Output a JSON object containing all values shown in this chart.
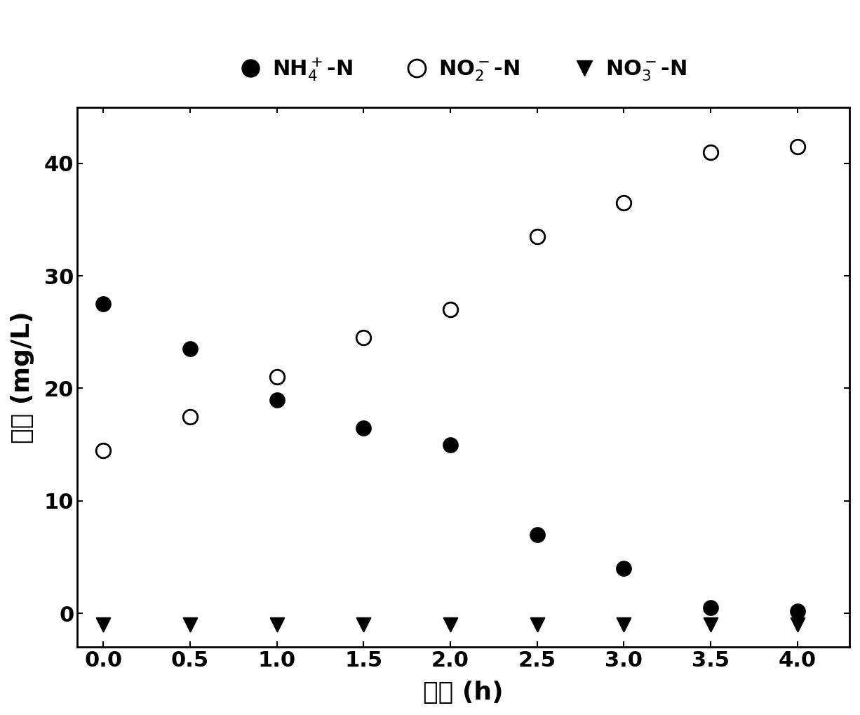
{
  "time": [
    0.0,
    0.5,
    1.0,
    1.5,
    2.0,
    2.5,
    3.0,
    3.5,
    4.0
  ],
  "NH4_N": [
    27.5,
    23.5,
    19.0,
    16.5,
    15.0,
    7.0,
    4.0,
    0.5,
    0.2
  ],
  "NO2_N": [
    14.5,
    17.5,
    21.0,
    24.5,
    27.0,
    33.5,
    36.5,
    41.0,
    41.5
  ],
  "NO3_N": [
    -1.0,
    -1.0,
    -1.0,
    -1.0,
    -1.0,
    -1.0,
    -1.0,
    -1.0,
    -1.0
  ],
  "ylabel": "浓度 (mg/L)",
  "xlabel": "时间 (h)",
  "ylim": [
    -3,
    45
  ],
  "xlim": [
    -0.15,
    4.3
  ],
  "yticks": [
    0,
    10,
    20,
    30,
    40
  ],
  "xticks": [
    0.0,
    0.5,
    1.0,
    1.5,
    2.0,
    2.5,
    3.0,
    3.5,
    4.0
  ],
  "legend_label_NH4": "NH$_4^+$-N",
  "legend_label_NO2": "NO$_2^-$-N",
  "legend_label_NO3": "NO$_3^-$-N",
  "marker_size_circle": 220,
  "marker_size_triangle": 200,
  "background_color": "#ffffff",
  "axis_color": "#000000",
  "marker_color_filled": "#000000",
  "marker_color_open": "#ffffff",
  "marker_edge_color": "#000000",
  "tick_fontsize": 22,
  "label_fontsize": 26,
  "legend_fontsize": 22
}
